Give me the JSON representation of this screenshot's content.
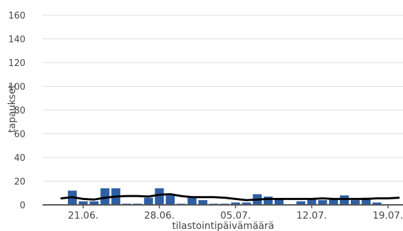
{
  "chart_data": {
    "type": "bar",
    "title": "",
    "xlabel": "tilastointipäivämäärä",
    "ylabel": "tapaukset",
    "ylim": [
      0,
      160
    ],
    "yticks": [
      0,
      20,
      40,
      60,
      80,
      100,
      120,
      140,
      160
    ],
    "grid": true,
    "legend": "none",
    "x_start": "2020-06-19",
    "categories": [
      "19.06.",
      "20.06.",
      "21.06.",
      "22.06.",
      "23.06.",
      "24.06.",
      "25.06.",
      "26.06.",
      "27.06.",
      "28.06.",
      "29.06.",
      "30.06.",
      "01.07.",
      "02.07.",
      "03.07.",
      "04.07.",
      "05.07.",
      "06.07.",
      "07.07.",
      "08.07.",
      "09.07.",
      "10.07.",
      "11.07.",
      "12.07.",
      "13.07.",
      "14.07.",
      "15.07.",
      "16.07.",
      "17.07.",
      "18.07.",
      "19.07.",
      "20.07."
    ],
    "x_tick_labels": [
      "21.06.",
      "28.06.",
      "05.07.",
      "12.07.",
      "19.07."
    ],
    "series": [
      {
        "name": "",
        "kind": "bar",
        "color": "#2e5fa3",
        "values": [
          0,
          12,
          3,
          3,
          14,
          14,
          1,
          1,
          6,
          14,
          8,
          1,
          6,
          4,
          1,
          1,
          2,
          2,
          9,
          7,
          5,
          0,
          3,
          5,
          4,
          5,
          8,
          4,
          6,
          2,
          0,
          0
        ]
      },
      {
        "name": "",
        "kind": "line",
        "color": "#000000",
        "values": [
          5.5,
          6.5,
          5,
          4.5,
          6,
          7,
          7.5,
          7.5,
          7,
          8.5,
          9,
          7.5,
          6.5,
          6.5,
          6.5,
          6,
          5,
          4,
          4.5,
          5,
          5,
          5,
          5,
          5,
          5.5,
          5,
          5,
          5,
          5,
          5.5,
          5.5,
          6
        ]
      }
    ]
  }
}
